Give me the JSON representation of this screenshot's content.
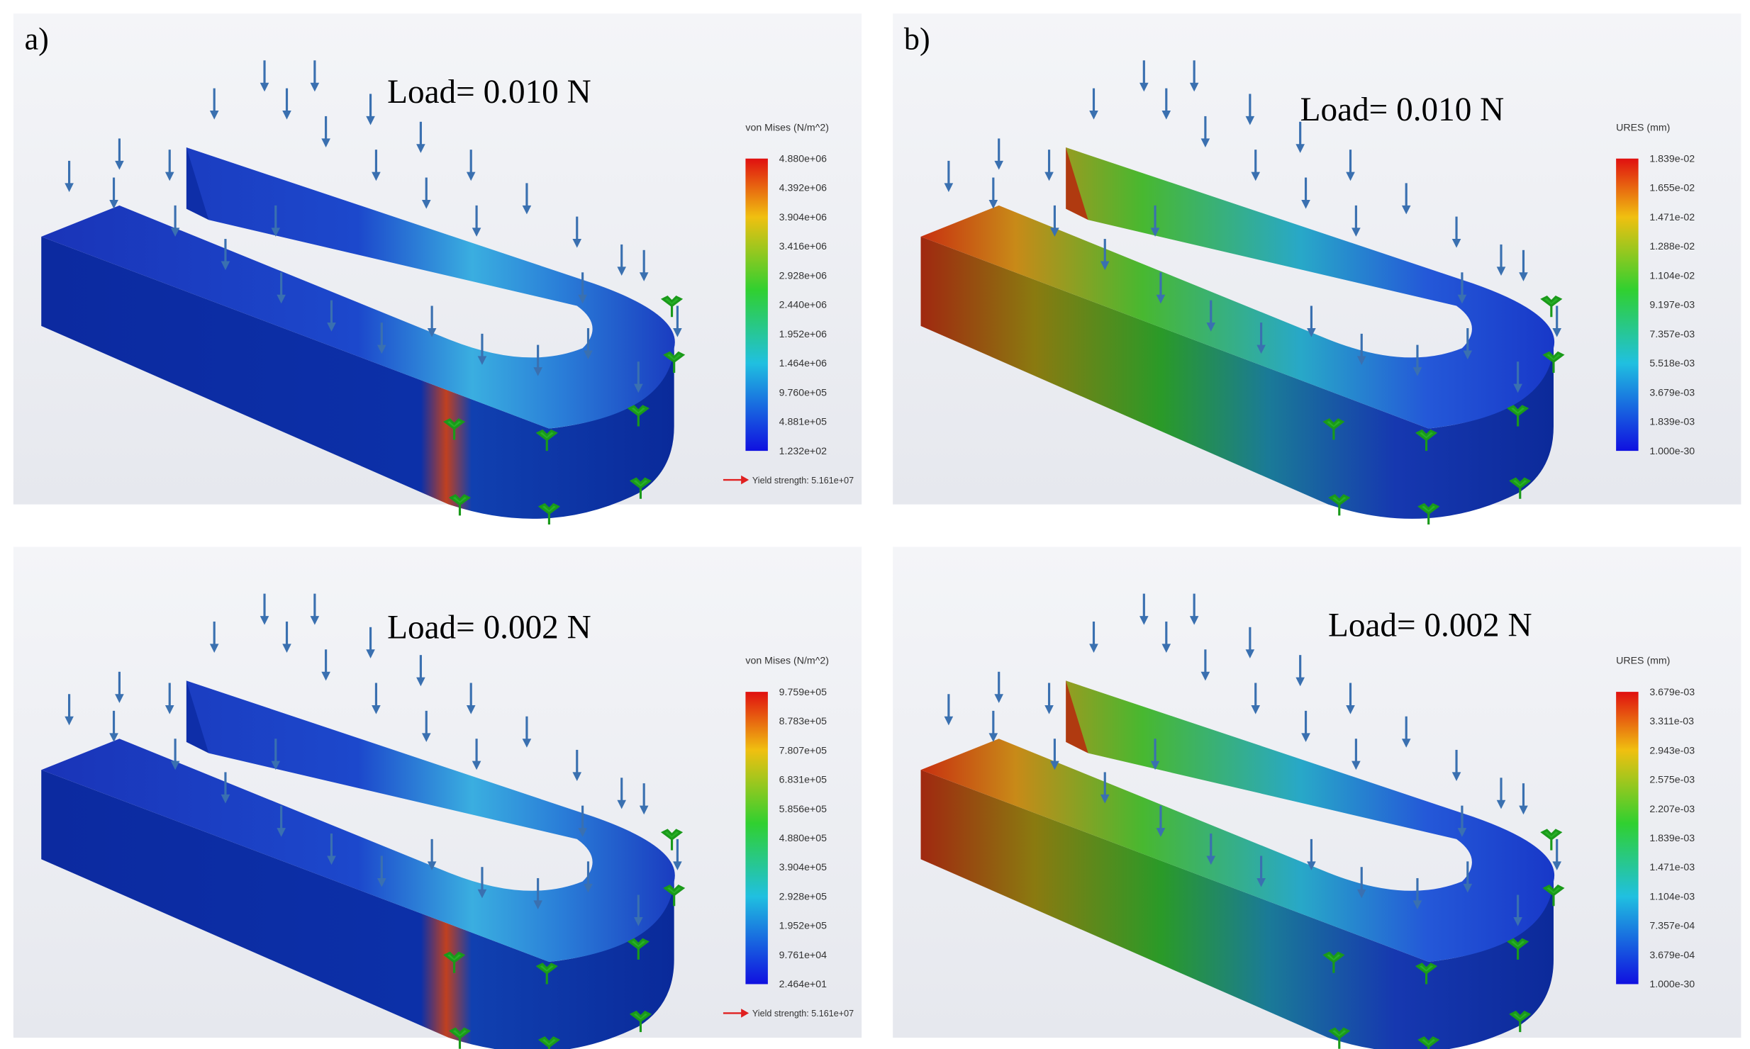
{
  "figure": {
    "columns": [
      {
        "label": "a)",
        "panels": [
          {
            "load": "Load= 0.010 N",
            "legend_title": "von Mises (N/m^2)",
            "legend_ticks": [
              "4.880e+06",
              "4.392e+06",
              "3.904e+06",
              "3.416e+06",
              "2.928e+06",
              "2.440e+06",
              "1.952e+06",
              "1.464e+06",
              "9.760e+05",
              "4.881e+05",
              "1.232e+02"
            ],
            "yield_strength": "Yield strength: 5.161e+07"
          },
          {
            "load": "Load= 0.002 N",
            "legend_title": "von Mises (N/m^2)",
            "legend_ticks": [
              "9.759e+05",
              "8.783e+05",
              "7.807e+05",
              "6.831e+05",
              "5.856e+05",
              "4.880e+05",
              "3.904e+05",
              "2.928e+05",
              "1.952e+05",
              "9.761e+04",
              "2.464e+01"
            ],
            "yield_strength": "Yield strength: 5.161e+07"
          }
        ]
      },
      {
        "label": "b)",
        "panels": [
          {
            "load": "Load= 0.010 N",
            "legend_title": "URES (mm)",
            "legend_ticks": [
              "1.839e-02",
              "1.655e-02",
              "1.471e-02",
              "1.288e-02",
              "1.104e-02",
              "9.197e-03",
              "7.357e-03",
              "5.518e-03",
              "3.679e-03",
              "1.839e-03",
              "1.000e-30"
            ]
          },
          {
            "load": "Load= 0.002 N",
            "legend_title": "URES (mm)",
            "legend_ticks": [
              "3.679e-03",
              "3.311e-03",
              "2.943e-03",
              "2.575e-03",
              "2.207e-03",
              "1.839e-03",
              "1.471e-03",
              "1.104e-03",
              "7.357e-04",
              "3.679e-04",
              "1.000e-30"
            ]
          }
        ]
      }
    ]
  }
}
